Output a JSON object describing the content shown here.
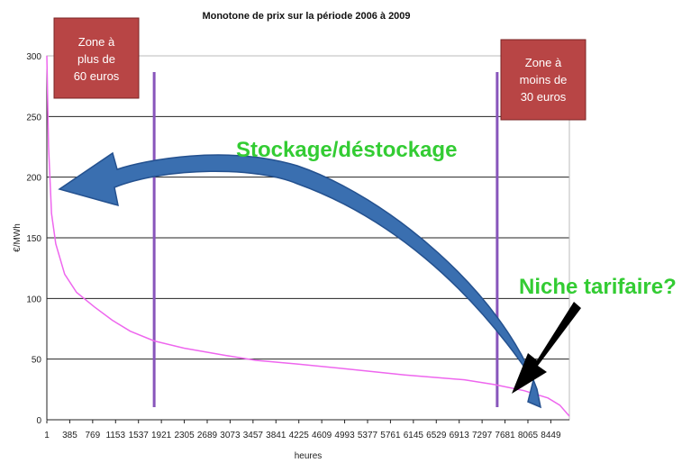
{
  "chart_data": {
    "type": "line",
    "title": "Monotone de prix sur la période 2006 à 2009",
    "xlabel": "heures",
    "ylabel": "€/MWh",
    "ylim": [
      0,
      300
    ],
    "yticks": [
      0,
      50,
      100,
      150,
      200,
      250,
      300
    ],
    "xlim": [
      1,
      8760
    ],
    "xtick_labels": [
      "1",
      "385",
      "769",
      "1153",
      "1537",
      "1921",
      "2305",
      "2689",
      "3073",
      "3457",
      "3841",
      "4225",
      "4609",
      "4993",
      "5377",
      "5761",
      "6145",
      "6529",
      "6913",
      "7297",
      "7681",
      "8065",
      "8449"
    ],
    "xtick_values": [
      1,
      385,
      769,
      1153,
      1537,
      1921,
      2305,
      2689,
      3073,
      3457,
      3841,
      4225,
      4609,
      4993,
      5377,
      5761,
      6145,
      6529,
      6913,
      7297,
      7681,
      8065,
      8449
    ],
    "grid": "horizontal",
    "series": [
      {
        "color": "#ee66ee",
        "x": [
          1,
          30,
          80,
          150,
          300,
          500,
          800,
          1100,
          1400,
          1800,
          2300,
          3000,
          3500,
          4200,
          5000,
          6000,
          7000,
          7500,
          8000,
          8400,
          8600,
          8760
        ],
        "y": [
          300,
          225,
          170,
          145,
          120,
          105,
          93,
          82,
          73,
          65,
          59,
          53,
          49,
          46,
          42,
          37,
          33,
          29,
          24,
          18,
          12,
          3
        ]
      }
    ],
    "vertical_lines_x": [
      1800,
      7550
    ]
  },
  "annotations": {
    "zone_high": [
      "Zone à",
      "plus de",
      "60 euros"
    ],
    "zone_low": [
      "Zone à",
      "moins de",
      "30 euros"
    ],
    "storage": "Stockage/déstockage",
    "niche": "Niche tarifaire?"
  },
  "colors": {
    "zone_box": "#b84545",
    "green_text": "#33cc33",
    "big_arrow": "#3a6fb0",
    "vertical_line": "#8855bb",
    "curve": "#ee66ee"
  }
}
